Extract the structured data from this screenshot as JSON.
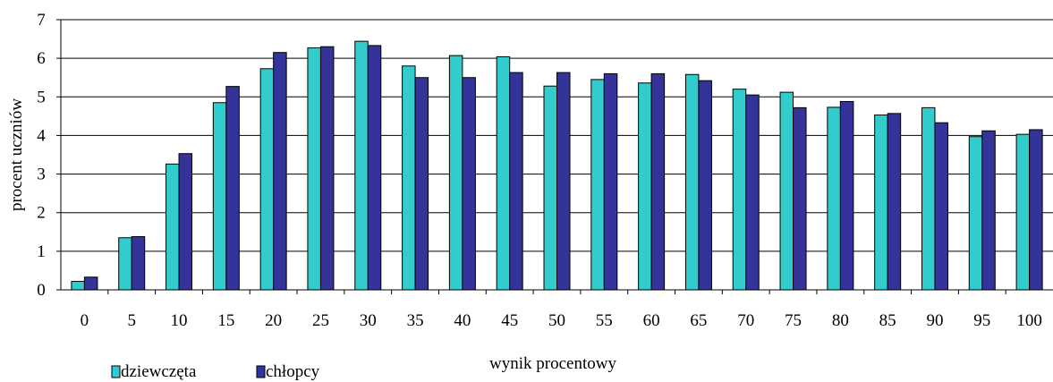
{
  "chart_data": {
    "type": "bar",
    "title": "",
    "xlabel": "wynik procentowy",
    "ylabel": "procent uczniów",
    "ylim": [
      0,
      7
    ],
    "yticks": [
      "0",
      "1",
      "2",
      "3",
      "4",
      "5",
      "6",
      "7"
    ],
    "categories": [
      "0",
      "5",
      "10",
      "15",
      "20",
      "25",
      "30",
      "35",
      "40",
      "45",
      "50",
      "55",
      "60",
      "65",
      "70",
      "75",
      "80",
      "85",
      "90",
      "95",
      "100"
    ],
    "series": [
      {
        "name": "dziewczęta",
        "color": "#33cccc",
        "values": [
          0.22,
          1.35,
          3.26,
          4.85,
          5.73,
          6.27,
          6.44,
          5.8,
          6.07,
          6.04,
          5.28,
          5.45,
          5.36,
          5.58,
          5.2,
          5.12,
          4.73,
          4.53,
          4.72,
          3.97,
          4.03
        ]
      },
      {
        "name": "chłopcy",
        "color": "#333399",
        "values": [
          0.33,
          1.38,
          3.53,
          5.27,
          6.15,
          6.3,
          6.33,
          5.5,
          5.5,
          5.63,
          5.63,
          5.6,
          5.6,
          5.42,
          5.05,
          4.72,
          4.88,
          4.57,
          4.33,
          4.12,
          4.15
        ]
      }
    ],
    "grid": true,
    "legend_position": "bottom-left"
  }
}
